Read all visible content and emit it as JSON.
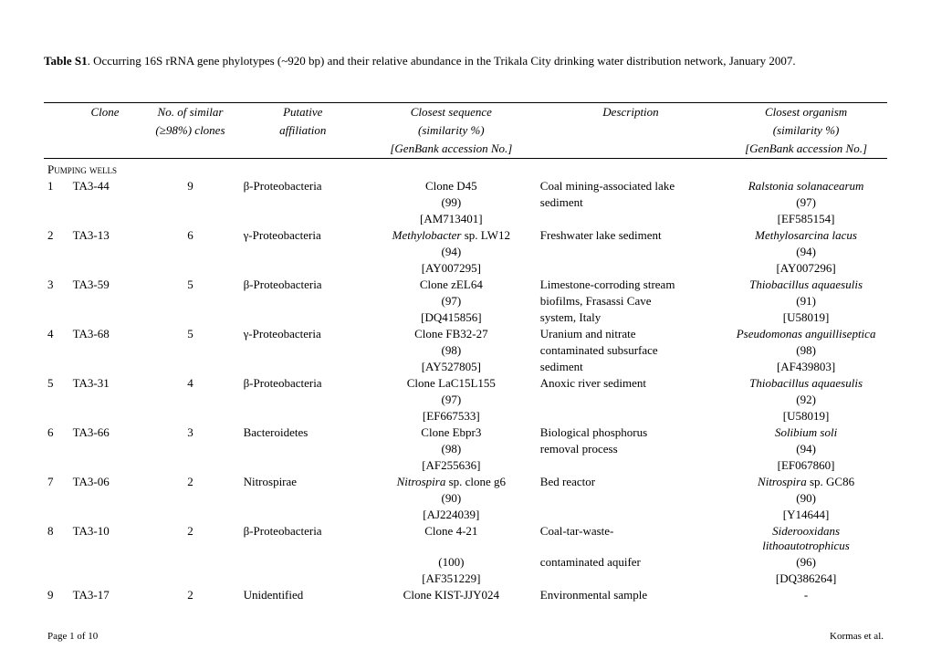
{
  "caption": {
    "label": "Table S1",
    "text": ". Occurring 16S rRNA gene phylotypes (~920 bp) and their relative abundance in the Trikala City drinking water distribution network, January 2007."
  },
  "headers": {
    "clone": "Clone",
    "nsimilar1": "No. of similar",
    "nsimilar2": "(≥98%) clones",
    "affil1": "Putative",
    "affil2": "affiliation",
    "closeseq1": "Closest sequence",
    "closeseq2": "(similarity %)",
    "closeseq3": "[GenBank accession No.]",
    "desc": "Description",
    "closeorg1": "Closest organism",
    "closeorg2": "(similarity %)",
    "closeorg3": "[GenBank accession No.]"
  },
  "section": "Pumping wells",
  "rows": [
    {
      "idx": "1",
      "clone": "TA3-44",
      "n": "9",
      "affil": "β-Proteobacteria",
      "seq1": "Clone D45",
      "seq2": "(99)",
      "seq3": "[AM713401]",
      "desc1": "Coal mining-associated lake",
      "desc2": "sediment",
      "org1": "Ralstonia solanacearum",
      "org2": "(97)",
      "org3": "[EF585154]",
      "org1_ital": true
    },
    {
      "idx": "2",
      "clone": "TA3-13",
      "n": "6",
      "affil": "γ-Proteobacteria",
      "seq1": "Methylobacter",
      "seq1b": " sp. LW12",
      "seq1_ital": true,
      "seq2": "(94)",
      "seq3": "[AY007295]",
      "desc1": "Freshwater lake sediment",
      "org1": "Methylosarcina lacus",
      "org2": "(94)",
      "org3": "[AY007296]",
      "org1_ital": true
    },
    {
      "idx": "3",
      "clone": "TA3-59",
      "n": "5",
      "affil": "β-Proteobacteria",
      "seq1": "Clone zEL64",
      "seq2": "(97)",
      "seq3": "[DQ415856]",
      "desc1": "Limestone-corroding stream",
      "desc2": "biofilms, Frasassi Cave",
      "desc3": "system, Italy",
      "org1": "Thiobacillus aquaesulis",
      "org2": "(91)",
      "org3": "[U58019]",
      "org1_ital": true
    },
    {
      "idx": "4",
      "clone": "TA3-68",
      "n": "5",
      "affil": "γ-Proteobacteria",
      "seq1": "Clone FB32-27",
      "seq2": "(98)",
      "seq3": "[AY527805]",
      "desc1": "Uranium and nitrate",
      "desc2": "contaminated subsurface",
      "desc3": "sediment",
      "org1": "Pseudomonas anguilliseptica",
      "org2": "(98)",
      "org3": "[AF439803]",
      "org1_ital": true
    },
    {
      "idx": "5",
      "clone": "TA3-31",
      "n": "4",
      "affil": "β-Proteobacteria",
      "seq1": "Clone LaC15L155",
      "seq2": "(97)",
      "seq3": "[EF667533]",
      "desc1": "Anoxic river sediment",
      "org1": "Thiobacillus aquaesulis",
      "org2": "(92)",
      "org3": "[U58019]",
      "org1_ital": true
    },
    {
      "idx": "6",
      "clone": "TA3-66",
      "n": "3",
      "affil": "Bacteroidetes",
      "seq1": "Clone Ebpr3",
      "seq2": "(98)",
      "seq3": "[AF255636]",
      "desc1": "Biological phosphorus",
      "desc2": "removal process",
      "org1": "Solibium soli",
      "org2": "(94)",
      "org3": "[EF067860]",
      "org1_ital": true
    },
    {
      "idx": "7",
      "clone": "TA3-06",
      "n": "2",
      "affil": "Nitrospirae",
      "seq1": "Nitrospira",
      "seq1b": " sp. clone g6",
      "seq1_ital": true,
      "seq2": "(90)",
      "seq3": "[AJ224039]",
      "desc1": "Bed reactor",
      "org1": "Nitrospira",
      "org1b": " sp. GC86",
      "org2": "(90)",
      "org3": "[Y14644]",
      "org1_ital": true
    },
    {
      "idx": "8",
      "clone": "TA3-10",
      "n": "2",
      "affil": "β-Proteobacteria",
      "seq1": "Clone 4-21",
      "seq2": "(100)",
      "seq3": "[AF351229]",
      "desc1": "Coal-tar-waste-",
      "desc2": "contaminated aquifer",
      "org1": "Siderooxidans lithoautotrophicus",
      "org2": "(96)",
      "org3": "[DQ386264]",
      "org1_ital": true
    },
    {
      "idx": "9",
      "clone": "TA3-17",
      "n": "2",
      "affil": "Unidentified",
      "seq1": "Clone KIST-JJY024",
      "desc1": "Environmental sample",
      "org1": "-"
    }
  ],
  "footer": {
    "left": "Page 1 of 10",
    "right": "Kormas et al."
  }
}
